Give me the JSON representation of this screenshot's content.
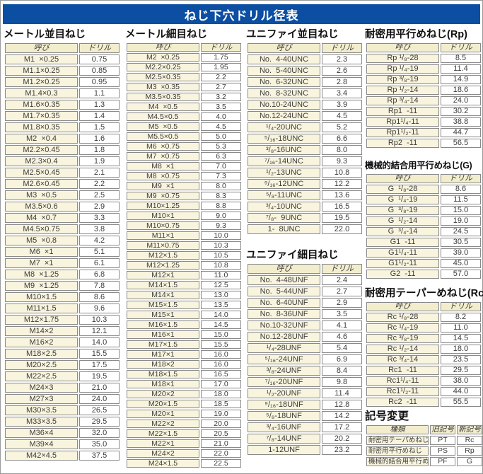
{
  "title": "ねじ下穴ドリル径表",
  "colors": {
    "title_bar": "#0b4ea2",
    "table_border": "#8a8a8a",
    "header_cell": "#f2edcd",
    "name_cell": "#f8f4dd",
    "text": "#3c3c3c"
  },
  "tables": [
    {
      "id": "metric_coarse",
      "heading": "メートル並目ねじ",
      "headers": [
        "呼び",
        "ドリル"
      ],
      "rows": [
        [
          "M1  ×0.25",
          "0.75"
        ],
        [
          "M1.1×0.25",
          "0.85"
        ],
        [
          "M1.2×0.25",
          "0.95"
        ],
        [
          "M1.4×0.3",
          "1.1"
        ],
        [
          "M1.6×0.35",
          "1.3"
        ],
        [
          "M1.7×0.35",
          "1.4"
        ],
        [
          "M1.8×0.35",
          "1.5"
        ],
        [
          "M2  ×0.4",
          "1.6"
        ],
        [
          "M2.2×0.45",
          "1.8"
        ],
        [
          "M2.3×0.4",
          "1.9"
        ],
        [
          "M2.5×0.45",
          "2.1"
        ],
        [
          "M2.6×0.45",
          "2.2"
        ],
        [
          "M3  ×0.5",
          "2.5"
        ],
        [
          "M3.5×0.6",
          "2.9"
        ],
        [
          "M4  ×0.7",
          "3.3"
        ],
        [
          "M4.5×0.75",
          "3.8"
        ],
        [
          "M5  ×0.8",
          "4.2"
        ],
        [
          "M6  ×1",
          "5.1"
        ],
        [
          "M7  ×1",
          "6.1"
        ],
        [
          "M8  ×1.25",
          "6.8"
        ],
        [
          "M9  ×1.25",
          "7.8"
        ],
        [
          "M10×1.5",
          "8.6"
        ],
        [
          "M11×1.5",
          "9.6"
        ],
        [
          "M12×1.75",
          "10.3"
        ],
        [
          "M14×2",
          "12.1"
        ],
        [
          "M16×2",
          "14.0"
        ],
        [
          "M18×2.5",
          "15.5"
        ],
        [
          "M20×2.5",
          "17.5"
        ],
        [
          "M22×2.5",
          "19.5"
        ],
        [
          "M24×3",
          "21.0"
        ],
        [
          "M27×3",
          "24.0"
        ],
        [
          "M30×3.5",
          "26.5"
        ],
        [
          "M33×3.5",
          "29.5"
        ],
        [
          "M36×4",
          "32.0"
        ],
        [
          "M39×4",
          "35.0"
        ],
        [
          "M42×4.5",
          "37.5"
        ]
      ]
    },
    {
      "id": "metric_fine",
      "heading": "メートル細目ねじ",
      "headers": [
        "呼び",
        "ドリル"
      ],
      "rows": [
        [
          "M2  ×0.25",
          "1.75"
        ],
        [
          "M2.2×0.25",
          "1.95"
        ],
        [
          "M2.5×0.35",
          "2.2"
        ],
        [
          "M3  ×0.35",
          "2.7"
        ],
        [
          "M3.5×0.35",
          "3.2"
        ],
        [
          "M4  ×0.5",
          "3.5"
        ],
        [
          "M4.5×0.5",
          "4.0"
        ],
        [
          "M5  ×0.5",
          "4.5"
        ],
        [
          "M5.5×0.5",
          "5.0"
        ],
        [
          "M6  ×0.75",
          "5.3"
        ],
        [
          "M7  ×0.75",
          "6.3"
        ],
        [
          "M8  ×1",
          "7.0"
        ],
        [
          "M8  ×0.75",
          "7.3"
        ],
        [
          "M9  ×1",
          "8.0"
        ],
        [
          "M9  ×0.75",
          "8.3"
        ],
        [
          "M10×1.25",
          "8.8"
        ],
        [
          "M10×1",
          "9.0"
        ],
        [
          "M10×0.75",
          "9.3"
        ],
        [
          "M11×1",
          "10.0"
        ],
        [
          "M11×0.75",
          "10.3"
        ],
        [
          "M12×1.5",
          "10.5"
        ],
        [
          "M12×1.25",
          "10.8"
        ],
        [
          "M12×1",
          "11.0"
        ],
        [
          "M14×1.5",
          "12.5"
        ],
        [
          "M14×1",
          "13.0"
        ],
        [
          "M15×1.5",
          "13.5"
        ],
        [
          "M15×1",
          "14.0"
        ],
        [
          "M16×1.5",
          "14.5"
        ],
        [
          "M16×1",
          "15.0"
        ],
        [
          "M17×1.5",
          "15.5"
        ],
        [
          "M17×1",
          "16.0"
        ],
        [
          "M18×2",
          "16.0"
        ],
        [
          "M18×1.5",
          "16.5"
        ],
        [
          "M18×1",
          "17.0"
        ],
        [
          "M20×2",
          "18.0"
        ],
        [
          "M20×1.5",
          "18.5"
        ],
        [
          "M20×1",
          "19.0"
        ],
        [
          "M22×2",
          "20.0"
        ],
        [
          "M22×1.5",
          "20.5"
        ],
        [
          "M22×1",
          "21.0"
        ],
        [
          "M24×2",
          "22.0"
        ],
        [
          "M24×1.5",
          "22.5"
        ]
      ]
    },
    {
      "id": "unified_coarse",
      "heading": "ユニファイ並目ねじ",
      "headers": [
        "呼び",
        "ドリル"
      ],
      "rows": [
        [
          "No.  4-40UNC",
          "2.3"
        ],
        [
          "No.  5-40UNC",
          "2.6"
        ],
        [
          "No.  6-32UNC",
          "2.8"
        ],
        [
          "No.  8-32UNC",
          "3.4"
        ],
        [
          "No.10-24UNC",
          "3.9"
        ],
        [
          "No.12-24UNC",
          "4.5"
        ],
        [
          "¹/₄-20UNC",
          "5.2"
        ],
        [
          "⁵/₁₆-18UNC",
          "6.6"
        ],
        [
          "³/₈-16UNC",
          "8.0"
        ],
        [
          "⁷/₁₆-14UNC",
          "9.3"
        ],
        [
          "¹/₂-13UNC",
          "10.8"
        ],
        [
          "⁹/₁₆-12UNC",
          "12.2"
        ],
        [
          "⁵/₈-11UNC",
          "13.6"
        ],
        [
          "³/₄-10UNC",
          "16.5"
        ],
        [
          "⁷/₈-  9UNC",
          "19.5"
        ],
        [
          "1-  8UNC",
          "22.0"
        ]
      ]
    },
    {
      "id": "unified_fine",
      "heading": "ユニファイ細目ねじ",
      "headers": [
        "呼び",
        "ドリル"
      ],
      "rows": [
        [
          "No.  4-48UNF",
          "2.4"
        ],
        [
          "No.  5-44UNF",
          "2.7"
        ],
        [
          "No.  6-40UNF",
          "2.9"
        ],
        [
          "No.  8-36UNF",
          "3.5"
        ],
        [
          "No.10-32UNF",
          "4.1"
        ],
        [
          "No.12-28UNF",
          "4.6"
        ],
        [
          "¹/₄-28UNF",
          "5.4"
        ],
        [
          "⁵/₁₆-24UNF",
          "6.9"
        ],
        [
          "³/₈-24UNF",
          "8.4"
        ],
        [
          "⁷/₁₆-20UNF",
          "9.8"
        ],
        [
          "¹/₂-20UNF",
          "11.4"
        ],
        [
          "⁹/₁₆-18UNF",
          "12.8"
        ],
        [
          "⁵/₈-18UNF",
          "14.2"
        ],
        [
          "³/₄-16UNF",
          "17.2"
        ],
        [
          "⁷/₈-14UNF",
          "20.2"
        ],
        [
          "1-12UNF",
          "23.2"
        ]
      ]
    },
    {
      "id": "rp_parallel",
      "heading": "耐密用平行めねじ(Rp)",
      "headers": [
        "呼び",
        "ドリル"
      ],
      "rows": [
        [
          "Rp ¹/₈-28",
          "8.5"
        ],
        [
          "Rp ¹/₄-19",
          "11.4"
        ],
        [
          "Rp ³/₈-19",
          "14.9"
        ],
        [
          "Rp ¹/₂-14",
          "18.6"
        ],
        [
          "Rp ³/₄-14",
          "24.0"
        ],
        [
          "Rp1  -11",
          "30.2"
        ],
        [
          "Rp1¹/₄-11",
          "38.8"
        ],
        [
          "Rp1¹/₂-11",
          "44.7"
        ],
        [
          "Rp2  -11",
          "56.5"
        ]
      ]
    },
    {
      "id": "g_parallel",
      "heading": "機械的結合用平行めねじ(G)",
      "headers": [
        "呼び",
        "ドリル"
      ],
      "rows": [
        [
          "G  ¹/₈-28",
          "8.6"
        ],
        [
          "G  ¹/₄-19",
          "11.5"
        ],
        [
          "G  ³/₈-19",
          "15.0"
        ],
        [
          "G  ¹/₂-14",
          "19.0"
        ],
        [
          "G  ³/₄-14",
          "24.5"
        ],
        [
          "G1  -11",
          "30.5"
        ],
        [
          "G1¹/₄-11",
          "39.0"
        ],
        [
          "G1¹/₂-11",
          "45.0"
        ],
        [
          "G2  -11",
          "57.0"
        ]
      ]
    },
    {
      "id": "rc_taper",
      "heading": "耐密用テーパーめねじ(Rc)",
      "headers": [
        "呼び",
        "ドリル"
      ],
      "rows": [
        [
          "Rc ¹/₈-28",
          "8.2"
        ],
        [
          "Rc ¹/₄-19",
          "11.0"
        ],
        [
          "Rc ³/₈-19",
          "14.5"
        ],
        [
          "Rc ¹/₂-14",
          "18.0"
        ],
        [
          "Rc ³/₄-14",
          "23.5"
        ],
        [
          "Rc1  -11",
          "29.5"
        ],
        [
          "Rc1¹/₄-11",
          "38.0"
        ],
        [
          "Rc1¹/₂-11",
          "44.0"
        ],
        [
          "Rc2  -11",
          "55.5"
        ]
      ]
    },
    {
      "id": "symbol_change",
      "heading": "記号変更",
      "headers": [
        "種類",
        "旧記号",
        "新記号"
      ],
      "rows": [
        [
          "耐密用テーパめねじ",
          "PT",
          "Rc"
        ],
        [
          "耐密用平行めねじ",
          "PS",
          "Rp"
        ],
        [
          "機械的結合用平行めねじ",
          "PF",
          "G"
        ]
      ]
    }
  ]
}
